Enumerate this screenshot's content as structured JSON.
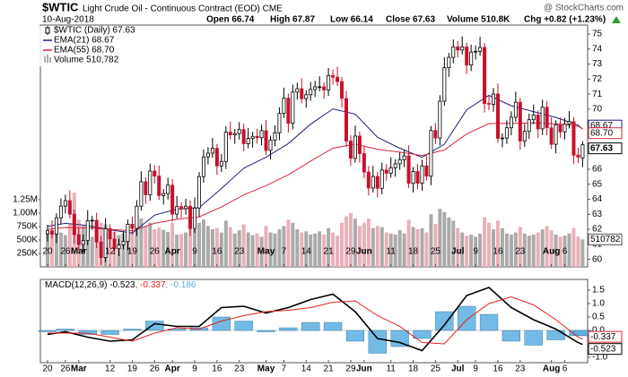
{
  "chart_data": [
    {
      "type": "candlestick",
      "title": "$WTIC",
      "subtitle": "Light Crude Oil - Continuous Contract (EOD) CME",
      "date": "10-Aug-2018",
      "stats": [
        "Open 66.74",
        "High 67.87",
        "Low 66.14",
        "Close 67.63",
        "Volume 510.8K",
        "Chg +0.82 (+1.23%)"
      ],
      "watermark": "@ StockCharts.com",
      "legend_label": "$WTIC (Daily) 67.63",
      "last_value_label": "67.63",
      "up_color": "#000000",
      "down_color": "#c8102e",
      "open": [
        61.7,
        61.9,
        61.68,
        62.77,
        63.55,
        63.91,
        63.01,
        61.64,
        60.99,
        61.25,
        62.57,
        62.6,
        61.15,
        60.12,
        62.04,
        61.36,
        60.71,
        60.96,
        61.19,
        62.34,
        62.06,
        63.54,
        65.17,
        64.3,
        65.88,
        65.55,
        64.25,
        64.38,
        64.94,
        63.01,
        63.51,
        63.37,
        63.54,
        62.06,
        63.42,
        65.51,
        66.82,
        67.07,
        67.39,
        66.22,
        66.52,
        68.47,
        68.29,
        68.38,
        68.64,
        67.7,
        68.05,
        68.19,
        68.1,
        68.57,
        67.25,
        67.93,
        68.43,
        69.72,
        70.73,
        69.06,
        71.14,
        71.36,
        70.7,
        70.96,
        71.31,
        71.49,
        71.49,
        71.28,
        72.24,
        72.13,
        71.84,
        70.71,
        67.88,
        66.73,
        68.21,
        67.04,
        65.81,
        64.75,
        65.52,
        64.73,
        65.95,
        65.74,
        66.1,
        66.36,
        66.64,
        66.89,
        65.06,
        65.85,
        65.07,
        66.22,
        65.54,
        68.58,
        68.08,
        70.53,
        72.76,
        73.45,
        74.15,
        73.94,
        74.14,
        72.94,
        73.8,
        73.85,
        74.11,
        70.38,
        70.33,
        71.01,
        68.06,
        68.08,
        68.76,
        69.46,
        70.46,
        67.89,
        68.52,
        69.3,
        69.61,
        68.69,
        70.13,
        68.76,
        67.66,
        68.96,
        68.49,
        69.01,
        69.17,
        66.94,
        66.74
      ],
      "high": [
        62.3,
        62.6,
        63.07,
        64.05,
        64.31,
        64.61,
        63.31,
        62.14,
        61.65,
        63.27,
        62.9,
        63.1,
        61.55,
        62.74,
        62.34,
        61.86,
        61.36,
        61.89,
        62.64,
        62.84,
        63.94,
        65.87,
        65.47,
        66.38,
        66.28,
        66.25,
        64.68,
        65.44,
        65.34,
        64.21,
        63.81,
        64.04,
        63.94,
        64.12,
        65.81,
        67.32,
        67.47,
        68.09,
        67.69,
        67.02,
        68.87,
        69.17,
        68.68,
        69.14,
        69.04,
        68.75,
        68.49,
        68.69,
        68.97,
        69.27,
        68.23,
        68.93,
        70.12,
        71.43,
        71.03,
        71.64,
        71.76,
        72.06,
        71.26,
        71.81,
        71.89,
        72.19,
        71.79,
        72.74,
        72.64,
        72.83,
        72.14,
        71.21,
        68.28,
        68.91,
        68.51,
        67.54,
        66.21,
        66.22,
        65.82,
        66.45,
        66.35,
        66.8,
        66.66,
        67.14,
        67.29,
        67.59,
        66.15,
        66.35,
        66.62,
        66.92,
        68.88,
        69.08,
        70.93,
        73.46,
        73.75,
        74.65,
        74.55,
        74.84,
        74.44,
        74.3,
        74.25,
        74.81,
        74.41,
        70.88,
        71.41,
        71.71,
        68.38,
        69.26,
        69.86,
        71.16,
        70.76,
        69.02,
        69.7,
        70.31,
        69.91,
        70.63,
        70.53,
        69.46,
        69.26,
        69.46,
        69.41,
        69.87,
        69.47,
        67.44,
        67.87
      ],
      "low": [
        61.2,
        61.38,
        61.08,
        62.37,
        63.05,
        62.71,
        61.04,
        60.59,
        60.49,
        60.95,
        61.97,
        60.75,
        59.62,
        59.82,
        60.76,
        60.31,
        60.21,
        60.66,
        60.59,
        61.66,
        61.56,
        63.24,
        63.7,
        63.9,
        65.05,
        63.95,
        63.65,
        63.98,
        62.51,
        62.71,
        62.77,
        62.97,
        61.56,
        61.76,
        62.82,
        65.11,
        66.32,
        66.77,
        65.62,
        65.82,
        66.02,
        67.99,
        67.69,
        67.98,
        67.2,
        67.4,
        67.45,
        67.7,
        67.6,
        66.95,
        66.65,
        67.53,
        67.93,
        69.42,
        68.46,
        68.66,
        70.64,
        70.4,
        70.1,
        70.56,
        70.81,
        71.19,
        70.68,
        70.88,
        71.63,
        71.54,
        70.11,
        67.48,
        66.23,
        66.43,
        66.44,
        65.41,
        64.25,
        64.45,
        64.13,
        64.33,
        65.24,
        65.44,
        65.5,
        65.96,
        66.14,
        64.76,
        64.46,
        64.67,
        64.57,
        65.24,
        64.94,
        67.68,
        67.58,
        70.23,
        72.16,
        73.05,
        73.44,
        73.64,
        72.34,
        72.54,
        73.3,
        73.55,
        69.78,
        69.93,
        69.83,
        67.76,
        67.46,
        67.68,
        68.26,
        69.16,
        67.29,
        67.49,
        68.02,
        69.0,
        68.09,
        68.29,
        68.26,
        67.36,
        67.06,
        68.09,
        67.99,
        68.71,
        66.34,
        66.41,
        66.14
      ],
      "close": [
        61.9,
        61.68,
        62.77,
        63.55,
        63.91,
        63.01,
        61.64,
        60.99,
        61.25,
        62.57,
        62.6,
        61.15,
        60.12,
        62.04,
        61.36,
        60.71,
        60.96,
        61.19,
        62.34,
        62.06,
        63.54,
        65.17,
        64.3,
        65.88,
        65.55,
        64.25,
        64.38,
        64.94,
        63.01,
        63.51,
        63.37,
        63.54,
        62.06,
        63.42,
        65.51,
        66.82,
        67.07,
        67.39,
        66.22,
        66.52,
        68.47,
        68.29,
        68.38,
        68.64,
        67.7,
        68.05,
        68.19,
        68.1,
        68.57,
        67.25,
        67.93,
        68.43,
        69.72,
        70.73,
        69.06,
        71.14,
        71.36,
        70.7,
        70.96,
        71.31,
        71.49,
        71.49,
        71.28,
        72.24,
        72.13,
        71.84,
        70.71,
        67.88,
        66.73,
        68.21,
        67.04,
        65.81,
        64.75,
        65.52,
        64.73,
        65.95,
        65.74,
        66.1,
        66.36,
        66.64,
        66.89,
        65.06,
        65.85,
        65.07,
        66.22,
        65.54,
        68.58,
        68.08,
        70.53,
        72.76,
        73.45,
        74.15,
        73.94,
        74.14,
        72.94,
        73.8,
        73.85,
        74.11,
        70.38,
        70.33,
        71.01,
        68.06,
        68.08,
        68.76,
        69.46,
        70.46,
        67.89,
        68.52,
        69.3,
        69.61,
        68.69,
        70.13,
        68.76,
        67.66,
        68.96,
        68.49,
        69.01,
        69.17,
        66.94,
        66.81,
        67.63
      ],
      "series": [
        {
          "name": "EMA(21) 68.67",
          "color": "#1f1f7a",
          "tag": "68.67",
          "x": [
            0,
            4,
            9,
            14,
            19,
            24,
            29,
            34,
            39,
            44,
            49,
            54,
            59,
            64,
            69,
            74,
            79,
            84,
            89,
            94,
            99,
            104,
            109,
            114,
            119,
            120
          ],
          "values": [
            62.2,
            62.4,
            62.25,
            61.97,
            61.75,
            62.94,
            63.34,
            63.44,
            64.71,
            66.07,
            66.8,
            67.71,
            69.0,
            70.02,
            69.67,
            68.13,
            67.4,
            66.79,
            67.67,
            69.96,
            70.92,
            70.23,
            69.84,
            69.45,
            68.94,
            68.67
          ]
        },
        {
          "name": "EMA(55) 68.70",
          "color": "#d62839",
          "tag": "68.70",
          "x": [
            0,
            4,
            9,
            14,
            19,
            24,
            29,
            34,
            39,
            44,
            49,
            54,
            59,
            64,
            69,
            74,
            79,
            84,
            89,
            94,
            99,
            104,
            109,
            114,
            119,
            120
          ],
          "values": [
            62.0,
            62.12,
            62.1,
            62.0,
            61.9,
            62.4,
            62.67,
            62.83,
            63.49,
            64.29,
            64.91,
            65.63,
            66.54,
            67.4,
            67.68,
            67.33,
            67.14,
            66.92,
            67.28,
            68.35,
            69.04,
            69.05,
            69.08,
            69.03,
            68.87,
            68.7
          ]
        }
      ],
      "volume": {
        "name": "Volume 510,782",
        "color": "#ababab",
        "down_color": "#eab0b8",
        "tag": "510782",
        "values": [
          620000,
          680000,
          720000,
          640000,
          590000,
          810000,
          1380000,
          880000,
          760000,
          700000,
          560000,
          740000,
          820000,
          790000,
          610000,
          650000,
          590000,
          620000,
          700000,
          640000,
          780000,
          900000,
          760000,
          820000,
          700000,
          730000,
          690000,
          650000,
          820000,
          600000,
          610000,
          640000,
          720000,
          700000,
          820000,
          880000,
          760000,
          700000,
          720000,
          640000,
          860000,
          740000,
          620000,
          680000,
          790000,
          640000,
          590000,
          620000,
          560000,
          760000,
          640000,
          620000,
          700000,
          760000,
          880000,
          820000,
          700000,
          640000,
          660000,
          600000,
          620000,
          660000,
          600000,
          720000,
          640000,
          580000,
          820000,
          940000,
          1000000,
          900000,
          760000,
          820000,
          900000,
          720000,
          760000,
          740000,
          640000,
          620000,
          600000,
          680000,
          620000,
          880000,
          740000,
          700000,
          720000,
          640000,
          980000,
          800000,
          1080000,
          1020000,
          920000,
          860000,
          720000,
          640000,
          580000,
          600000,
          560000,
          620000,
          920000,
          820000,
          700000,
          860000,
          720000,
          620000,
          600000,
          640000,
          740000,
          620000,
          580000,
          600000,
          640000,
          700000,
          760000,
          680000,
          600000,
          560000,
          580000,
          620000,
          720000,
          560000,
          510782
        ],
        "ylim": [
          0,
          1500000
        ],
        "yticks": [
          {
            "value": 250000,
            "label": "250K"
          },
          {
            "value": 500000,
            "label": "500K"
          },
          {
            "value": 750000,
            "label": "750K"
          },
          {
            "value": 1000000,
            "label": "1.00M"
          },
          {
            "value": 1250000,
            "label": "1.25M"
          }
        ]
      },
      "ylim": [
        59.5,
        75.6
      ],
      "yticks": [
        60,
        61,
        62,
        63,
        64,
        65,
        66,
        70,
        71,
        72,
        73,
        74,
        75
      ],
      "xticks": [
        {
          "value": 0,
          "label": "20"
        },
        {
          "value": 4,
          "label": "26"
        },
        {
          "value": 7,
          "label": "Mar"
        },
        {
          "value": 14,
          "label": "12"
        },
        {
          "value": 19,
          "label": "19"
        },
        {
          "value": 24,
          "label": "26"
        },
        {
          "value": 28,
          "label": "Apr"
        },
        {
          "value": 33,
          "label": "9"
        },
        {
          "value": 38,
          "label": "16"
        },
        {
          "value": 43,
          "label": "23"
        },
        {
          "value": 49,
          "label": "May"
        },
        {
          "value": 53,
          "label": "7"
        },
        {
          "value": 58,
          "label": "14"
        },
        {
          "value": 63,
          "label": "21"
        },
        {
          "value": 68,
          "label": "29"
        },
        {
          "value": 71,
          "label": "Jun"
        },
        {
          "value": 77,
          "label": "11"
        },
        {
          "value": 82,
          "label": "18"
        },
        {
          "value": 87,
          "label": "25"
        },
        {
          "value": 92,
          "label": "Jul"
        },
        {
          "value": 96,
          "label": "9"
        },
        {
          "value": 101,
          "label": "16"
        },
        {
          "value": 106,
          "label": "23"
        },
        {
          "value": 113,
          "label": "Aug"
        },
        {
          "value": 116,
          "label": "6"
        }
      ]
    },
    {
      "type": "macd",
      "series": [
        {
          "name": "MACD(12,26,9) -0.523",
          "color": "#000000",
          "tag": "-0.523",
          "x": [
            0,
            4,
            9,
            14,
            19,
            24,
            29,
            34,
            39,
            44,
            49,
            54,
            59,
            64,
            69,
            74,
            79,
            84,
            89,
            94,
            99,
            104,
            109,
            114,
            119,
            120
          ],
          "values": [
            -0.15,
            -0.05,
            -0.25,
            -0.4,
            -0.35,
            0.25,
            0.15,
            0.15,
            0.85,
            0.9,
            0.65,
            0.85,
            1.15,
            1.35,
            0.7,
            -0.3,
            -0.45,
            -0.75,
            0.2,
            1.3,
            1.6,
            0.85,
            0.4,
            0.05,
            -0.45,
            -0.523
          ]
        },
        {
          "name": ", -0.337",
          "color": "#e02020",
          "tag": "-0.337",
          "x": [
            0,
            4,
            9,
            14,
            19,
            24,
            29,
            34,
            39,
            44,
            49,
            54,
            59,
            64,
            69,
            74,
            79,
            84,
            89,
            94,
            99,
            104,
            109,
            114,
            119,
            120
          ],
          "values": [
            -0.1,
            -0.1,
            -0.1,
            -0.25,
            -0.4,
            -0.1,
            0.1,
            0.05,
            0.35,
            0.55,
            0.7,
            0.75,
            0.85,
            1.05,
            1.1,
            0.55,
            0.15,
            -0.45,
            -0.5,
            0.4,
            1.0,
            1.25,
            0.95,
            0.4,
            -0.25,
            -0.337
          ]
        },
        {
          "name": ", -0.186",
          "color": "#5aaee0",
          "style": "histogram",
          "x": [
            0,
            4,
            9,
            14,
            19,
            24,
            29,
            34,
            39,
            44,
            49,
            54,
            59,
            64,
            69,
            74,
            79,
            84,
            89,
            94,
            99,
            104,
            109,
            114,
            119,
            120
          ],
          "values": [
            -0.05,
            0.05,
            -0.15,
            -0.15,
            0.05,
            0.35,
            0.05,
            0.1,
            0.5,
            0.35,
            -0.05,
            0.1,
            0.3,
            0.3,
            -0.4,
            -0.85,
            -0.6,
            -0.3,
            0.7,
            0.9,
            0.6,
            -0.4,
            -0.55,
            -0.35,
            -0.2,
            -0.186
          ]
        }
      ],
      "ylim": [
        -1.2,
        1.9
      ],
      "yticks": [
        1.5,
        {
          "value": 1,
          "label": "1.0"
        },
        0.5,
        {
          "value": 0,
          "label": "0.0"
        },
        {
          "value": -1,
          "label": "-1.0"
        }
      ]
    }
  ]
}
